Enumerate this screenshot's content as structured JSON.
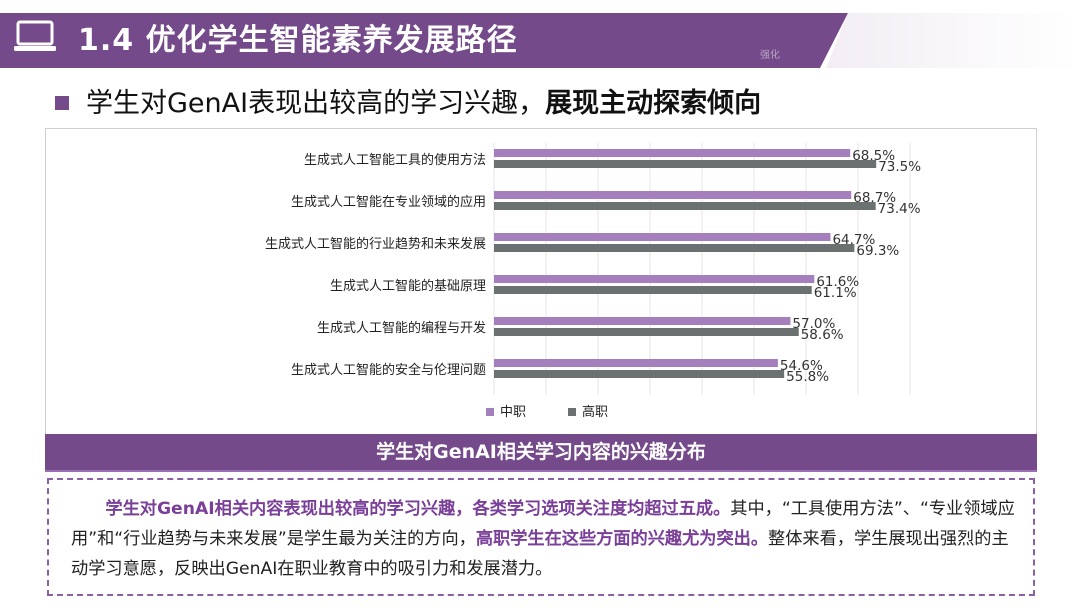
{
  "header": {
    "title": "1.4 优化学生智能素养发展路径",
    "icon": "laptop-icon",
    "watermark": "强化"
  },
  "subtitle": {
    "normal": "学生对GenAI表现出较高的学习兴趣，",
    "bold": "展现主动探索倾向"
  },
  "chart_data": {
    "type": "bar",
    "orientation": "horizontal",
    "categories": [
      "生成式人工智能工具的使用方法",
      "生成式人工智能在专业领域的应用",
      "生成式人工智能的行业趋势和未来发展",
      "生成式人工智能的基础原理",
      "生成式人工智能的编程与开发",
      "生成式人工智能的安全与伦理问题"
    ],
    "series": [
      {
        "name": "中职",
        "color": "#a57fbd",
        "values": [
          68.5,
          68.7,
          64.7,
          61.6,
          57.0,
          54.6
        ],
        "labels": [
          "68.5%",
          "68.7%",
          "64.7%",
          "61.6%",
          "57.0%",
          "54.6%"
        ]
      },
      {
        "name": "高职",
        "color": "#6b7071",
        "values": [
          73.5,
          73.4,
          69.3,
          61.1,
          58.6,
          55.8
        ],
        "labels": [
          "73.5%",
          "73.4%",
          "69.3%",
          "61.1%",
          "58.6%",
          "55.8%"
        ]
      }
    ],
    "xlim": [
      0,
      80
    ],
    "grid": true,
    "legend": "bottom-center",
    "title": "学生对GenAI相关学习内容的兴趣分布"
  },
  "description": {
    "hl1": "学生对GenAI相关内容表现出较高的学习兴趣，各类学习选项关注度均超过五成。",
    "t1": "其中，“工具使用方法”、“专业领域应用”和“行业趋势与未来发展”是学生最为关注的方向，",
    "hl2": "高职学生在这些方面的兴趣尤为突出。",
    "t2": "整体来看，学生展现出强烈的主动学习意愿，反映出GenAI在职业教育中的吸引力和发展潜力。"
  }
}
